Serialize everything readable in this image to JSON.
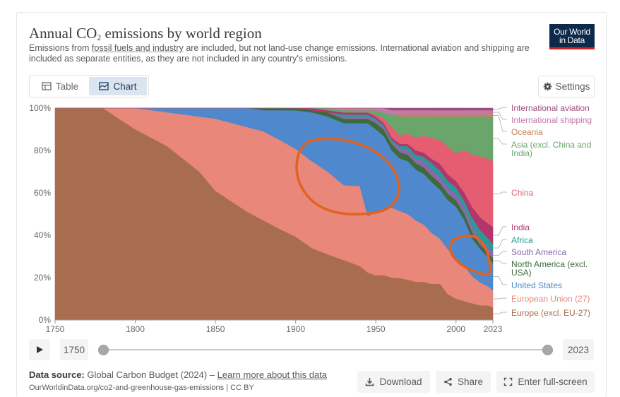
{
  "header": {
    "title_main": "Annual CO",
    "title_sub": "2",
    "title_rest": " emissions by world region",
    "subtitle_pre": "Emissions from ",
    "subtitle_link": "fossil fuels and industry",
    "subtitle_post": " are included, but not land-use change emissions. International aviation and shipping are included as separate entities, as they are not included in any country's emissions.",
    "logo_line1": "Our World",
    "logo_line2": "in Data"
  },
  "tabs": {
    "table_label": "Table",
    "chart_label": "Chart",
    "active": "Chart"
  },
  "settings": {
    "label": "Settings"
  },
  "timeline": {
    "start_year": "1750",
    "end_year": "2023"
  },
  "footer": {
    "source_label": "Data source:",
    "source_text": " Global Carbon Budget (2024) – ",
    "source_link": "Learn more about this data",
    "url": "OurWorldinData.org/co2-and-greenhouse-gas-emissions | CC BY"
  },
  "actions": {
    "download_label": "Download",
    "share_label": "Share",
    "fullscreen_label": "Enter full-screen"
  },
  "colors": {
    "accent": "#1d3d63",
    "logo_bg": "#0d2a4b",
    "logo_line": "#ce261e",
    "annotation": "#e2621f"
  },
  "chart_data": {
    "type": "area",
    "stacked": "relative",
    "title": "Annual CO2 emissions by world region",
    "ylabel": "",
    "xlabel": "",
    "ylim": [
      0,
      100
    ],
    "y_ticks": [
      "0%",
      "20%",
      "40%",
      "60%",
      "80%",
      "100%"
    ],
    "x_ticks": [
      "1750",
      "1800",
      "1850",
      "1900",
      "1950",
      "2000",
      "2023"
    ],
    "x": [
      1750,
      1780,
      1800,
      1820,
      1840,
      1850,
      1860,
      1870,
      1880,
      1890,
      1900,
      1910,
      1920,
      1930,
      1940,
      1945,
      1950,
      1955,
      1960,
      1965,
      1970,
      1975,
      1980,
      1985,
      1990,
      1995,
      2000,
      2005,
      2010,
      2015,
      2020,
      2023
    ],
    "series": [
      {
        "name": "Europe (excl. EU-27)",
        "color": "#a86d4f",
        "values": [
          100,
          100,
          90,
          82,
          70,
          61,
          56,
          51,
          47,
          43,
          39,
          34,
          31,
          28,
          25,
          22,
          21,
          21,
          20,
          20,
          19,
          18,
          18,
          17,
          17,
          12,
          10,
          9,
          8,
          7,
          7,
          6
        ]
      },
      {
        "name": "European Union (27)",
        "color": "#e8877a",
        "values": [
          0,
          0,
          10,
          16,
          26,
          34,
          37,
          40,
          42,
          42,
          41,
          41,
          39,
          35,
          37,
          26,
          30,
          31,
          33,
          32,
          31,
          29,
          27,
          24,
          21,
          21,
          19,
          17,
          13,
          11,
          9,
          8
        ]
      },
      {
        "name": "United States",
        "color": "#4f88cc",
        "values": [
          0,
          0,
          0,
          2,
          4,
          5,
          7,
          9,
          10,
          14,
          18,
          23,
          26,
          29,
          29,
          43,
          39,
          34,
          27,
          25,
          25,
          24,
          24,
          24,
          23,
          23,
          24,
          22,
          18,
          16,
          14,
          13
        ]
      },
      {
        "name": "North America (excl. USA)",
        "color": "#3d6b3a",
        "values": [
          0,
          0,
          0,
          0,
          0,
          0,
          0,
          0,
          1,
          1,
          1,
          1,
          2,
          2,
          2,
          2,
          3,
          3,
          3,
          3,
          3,
          3,
          3,
          3,
          3,
          3,
          3,
          3,
          3,
          2,
          2,
          2
        ]
      },
      {
        "name": "South America",
        "color": "#8a68ac",
        "values": [
          0,
          0,
          0,
          0,
          0,
          0,
          0,
          0,
          0,
          0,
          0,
          0,
          0,
          1,
          1,
          1,
          1,
          1,
          1,
          2,
          2,
          2,
          3,
          3,
          3,
          3,
          3,
          3,
          3,
          3,
          3,
          3
        ]
      },
      {
        "name": "Africa",
        "color": "#2a9a96",
        "values": [
          0,
          0,
          0,
          0,
          0,
          0,
          0,
          0,
          0,
          0,
          0,
          0,
          0,
          1,
          1,
          1,
          1,
          1,
          1,
          1,
          2,
          2,
          2,
          3,
          3,
          3,
          3,
          3,
          4,
          4,
          4,
          4
        ]
      },
      {
        "name": "India",
        "color": "#b3356e",
        "values": [
          0,
          0,
          0,
          0,
          0,
          0,
          0,
          0,
          0,
          0,
          0,
          1,
          1,
          1,
          1,
          1,
          1,
          1,
          1,
          1,
          1,
          2,
          2,
          2,
          3,
          3,
          3,
          4,
          5,
          6,
          7,
          8
        ]
      },
      {
        "name": "China",
        "color": "#e45d70",
        "values": [
          0,
          0,
          0,
          0,
          0,
          0,
          0,
          0,
          0,
          0,
          0,
          0,
          0,
          0,
          0,
          0,
          1,
          2,
          5,
          4,
          5,
          6,
          8,
          10,
          11,
          13,
          13,
          20,
          25,
          29,
          31,
          31
        ]
      },
      {
        "name": "Asia (excl. China and India)",
        "color": "#6aa66c",
        "values": [
          0,
          0,
          0,
          0,
          0,
          0,
          0,
          0,
          0,
          0,
          0,
          0,
          1,
          1,
          1,
          1,
          2,
          3,
          6,
          9,
          8,
          10,
          9,
          10,
          11,
          14,
          17,
          16,
          18,
          19,
          20,
          21
        ]
      },
      {
        "name": "Oceania",
        "color": "#c4825d",
        "values": [
          0,
          0,
          0,
          0,
          0,
          0,
          0,
          0,
          0,
          0,
          0,
          0,
          0,
          0,
          0,
          0,
          0,
          0,
          0,
          1,
          1,
          1,
          1,
          1,
          1,
          1,
          1,
          1,
          1,
          1,
          1,
          1
        ]
      },
      {
        "name": "International shipping",
        "color": "#c27aa5",
        "values": [
          0,
          0,
          0,
          0,
          0,
          0,
          0,
          0,
          0,
          0,
          0,
          0,
          0,
          1,
          1,
          1,
          1,
          2,
          2,
          2,
          2,
          2,
          2,
          2,
          2,
          2,
          2,
          2,
          2,
          2,
          2,
          2
        ]
      },
      {
        "name": "International aviation",
        "color": "#9b4f7f",
        "values": [
          0,
          0,
          0,
          0,
          0,
          0,
          0,
          0,
          0,
          0,
          0,
          0,
          0,
          0,
          0,
          0,
          0,
          0,
          1,
          1,
          1,
          1,
          1,
          1,
          1,
          1,
          1,
          1,
          1,
          1,
          1,
          1
        ]
      }
    ],
    "legend_position": "right"
  }
}
